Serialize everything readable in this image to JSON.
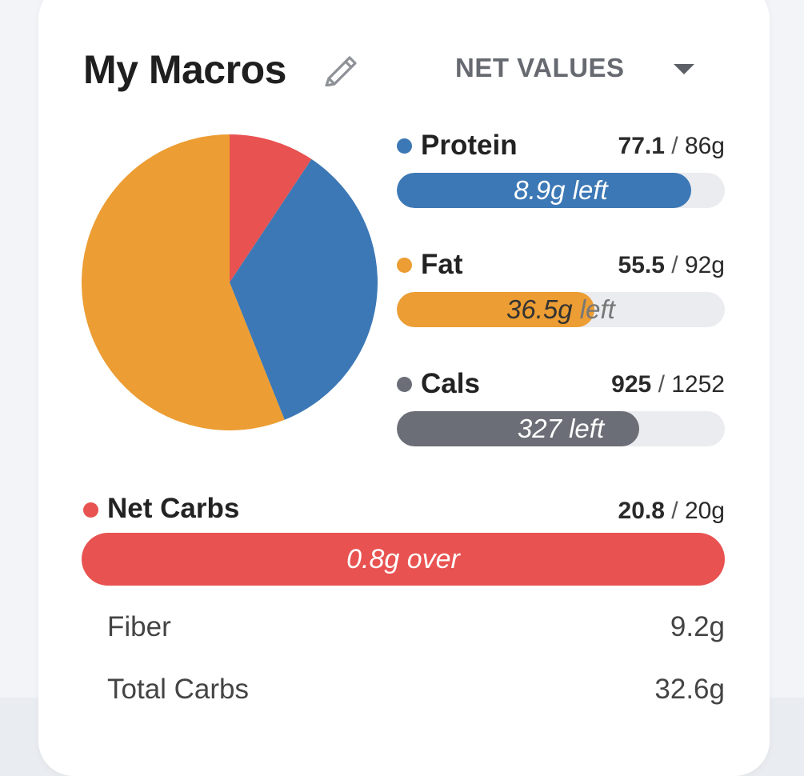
{
  "header": {
    "title": "My Macros",
    "view_selector": "NET VALUES"
  },
  "colors": {
    "protein": "#3c78b5",
    "fat": "#ec9d33",
    "cals": "#6b6e76",
    "net_carbs": "#e85250"
  },
  "icons": {
    "edit": "pencil-icon",
    "dropdown": "caret-down-icon"
  },
  "chart_data": {
    "type": "pie",
    "slices": [
      {
        "name": "Net Carbs",
        "value": 20.8,
        "color": "#e85250"
      },
      {
        "name": "Protein",
        "value": 77.1,
        "color": "#3c78b5"
      },
      {
        "name": "Fat",
        "value": 124.9,
        "color": "#ec9d33"
      }
    ],
    "start_angle_deg": 0,
    "direction": "clockwise"
  },
  "macros": {
    "protein": {
      "label": "Protein",
      "current": "77.1",
      "separator": " / ",
      "goal": "86g",
      "progress": 0.897,
      "remaining_number": "8.9g",
      "remaining_word": "left"
    },
    "fat": {
      "label": "Fat",
      "current": "55.5",
      "separator": " / ",
      "goal": "92g",
      "progress": 0.603,
      "remaining_number": "36.5g",
      "remaining_word": "left"
    },
    "cals": {
      "label": "Cals",
      "current": "925",
      "separator": " / ",
      "goal": "1252",
      "progress": 0.739,
      "remaining_number": "327",
      "remaining_word": "left"
    }
  },
  "net_carbs": {
    "label": "Net Carbs",
    "current": "20.8",
    "separator": " / ",
    "goal": "20g",
    "progress": 1.0,
    "status_text": "0.8g over"
  },
  "details": [
    {
      "label": "Fiber",
      "value": "9.2g"
    },
    {
      "label": "Total Carbs",
      "value": "32.6g"
    }
  ]
}
